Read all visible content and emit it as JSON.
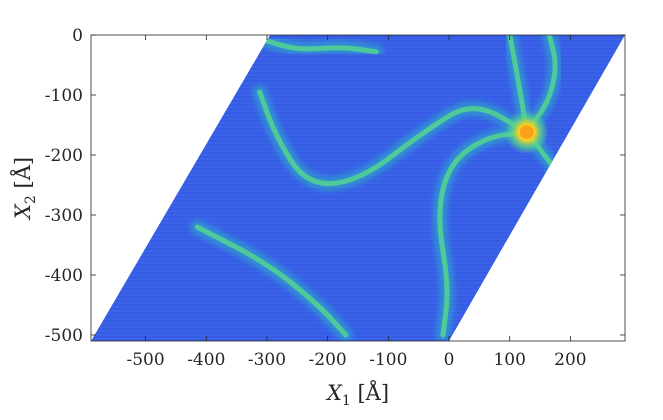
{
  "chart_data": {
    "type": "heatmap",
    "title": "",
    "xlabel": {
      "var": "X",
      "sub": "1",
      "unit": " [Å]"
    },
    "ylabel": {
      "var": "X",
      "sub": "2",
      "unit": " [Å]"
    },
    "xlim": [
      -590,
      290
    ],
    "ylim": [
      -510,
      0
    ],
    "xticks": [
      -500,
      -400,
      -300,
      -200,
      -100,
      0,
      100,
      200
    ],
    "xtick_labels": [
      "-500",
      "-400",
      "-300",
      "-200",
      "-100",
      "0",
      "100",
      "200"
    ],
    "yticks": [
      0,
      -100,
      -200,
      -300,
      -400,
      -500
    ],
    "ytick_labels": [
      "0",
      "-100",
      "-200",
      "-300",
      "-400",
      "-500"
    ],
    "grid": false,
    "colormap": "parula",
    "colors": {
      "low": "#3a63e8",
      "mid": "#2fb0c8",
      "ridge": "#55d38e",
      "peak": "#ffd21f",
      "peak_core": "#f9a11a",
      "axes": "#262626"
    },
    "domain_parallelogram": [
      [
        -590,
        -510
      ],
      [
        -295,
        0
      ],
      [
        290,
        0
      ],
      [
        0,
        -510
      ]
    ],
    "peak": {
      "x": 128,
      "y": -162,
      "value": 1.0
    },
    "ridges": [
      {
        "points": [
          [
            -312,
            -95
          ],
          [
            -285,
            -170
          ],
          [
            -235,
            -250
          ],
          [
            -150,
            -245
          ],
          [
            -40,
            -160
          ],
          [
            40,
            -110
          ],
          [
            128,
            -162
          ]
        ]
      },
      {
        "points": [
          [
            -300,
            -10
          ],
          [
            -250,
            -25
          ],
          [
            -175,
            -20
          ],
          [
            -120,
            -28
          ]
        ]
      },
      {
        "points": [
          [
            -415,
            -320
          ],
          [
            -300,
            -380
          ],
          [
            -215,
            -450
          ],
          [
            -170,
            -500
          ]
        ]
      },
      {
        "points": [
          [
            128,
            -162
          ],
          [
            60,
            -170
          ],
          [
            0,
            -215
          ],
          [
            -20,
            -300
          ],
          [
            0,
            -420
          ],
          [
            -10,
            -500
          ]
        ]
      },
      {
        "points": [
          [
            128,
            -162
          ],
          [
            165,
            -110
          ],
          [
            178,
            -50
          ],
          [
            165,
            0
          ]
        ]
      },
      {
        "points": [
          [
            128,
            -162
          ],
          [
            115,
            -80
          ],
          [
            100,
            0
          ]
        ]
      },
      {
        "points": [
          [
            128,
            -162
          ],
          [
            165,
            -210
          ],
          [
            185,
            -240
          ]
        ]
      }
    ]
  }
}
